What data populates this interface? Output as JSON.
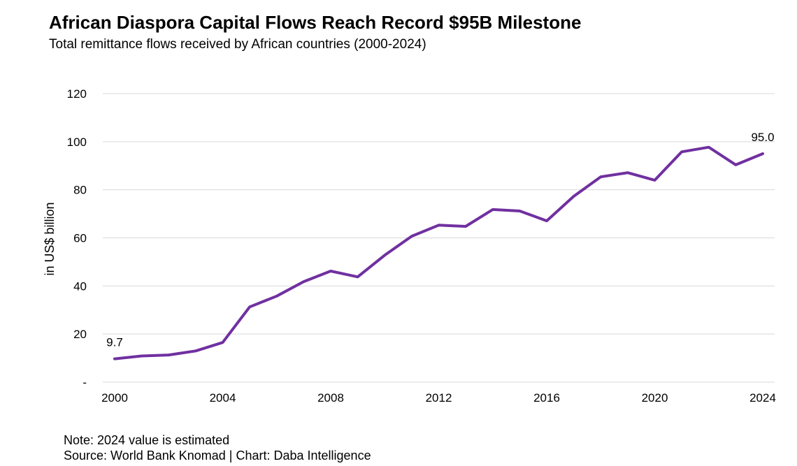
{
  "header": {
    "title": "African Diaspora Capital Flows Reach Record $95B Milestone",
    "subtitle": "Total remittance flows received by African countries (2000-2024)"
  },
  "footer": {
    "note": "Note: 2024 value is estimated",
    "source": "Source: World Bank Knomad | Chart: Daba Intelligence"
  },
  "colors": {
    "line": "#7030A0",
    "grid": "#D9D9D9"
  },
  "chart_data": {
    "type": "line",
    "title": "African Diaspora Capital Flows Reach Record $95B Milestone",
    "subtitle": "Total remittance flows received by African countries (2000-2024)",
    "xlabel": "",
    "ylabel": "in US$ billion",
    "ylim": [
      0,
      120
    ],
    "xlim": [
      2000,
      2024
    ],
    "yticks": [
      0,
      20,
      40,
      60,
      80,
      100,
      120
    ],
    "ytick_labels": [
      "-",
      "20",
      "40",
      "60",
      "80",
      "100",
      "120"
    ],
    "xticks": [
      2000,
      2004,
      2008,
      2012,
      2016,
      2020,
      2024
    ],
    "xtick_labels": [
      "2000",
      "2004",
      "2008",
      "2012",
      "2016",
      "2020",
      "2024"
    ],
    "grid": true,
    "legend": "none",
    "x": [
      2000,
      2001,
      2002,
      2003,
      2004,
      2005,
      2006,
      2007,
      2008,
      2009,
      2010,
      2011,
      2012,
      2013,
      2014,
      2015,
      2016,
      2017,
      2018,
      2019,
      2020,
      2021,
      2022,
      2023,
      2024
    ],
    "values": [
      9.7,
      10.9,
      11.3,
      13.0,
      16.5,
      31.3,
      35.8,
      41.8,
      46.2,
      43.8,
      52.8,
      60.7,
      65.3,
      64.8,
      71.8,
      71.2,
      67.1,
      77.3,
      85.4,
      87.1,
      84.0,
      95.8,
      97.7,
      90.4,
      95.0
    ],
    "annotations": [
      {
        "x": 2000,
        "y": 9.7,
        "label": "9.7"
      },
      {
        "x": 2024,
        "y": 95.0,
        "label": "95.0"
      }
    ]
  }
}
